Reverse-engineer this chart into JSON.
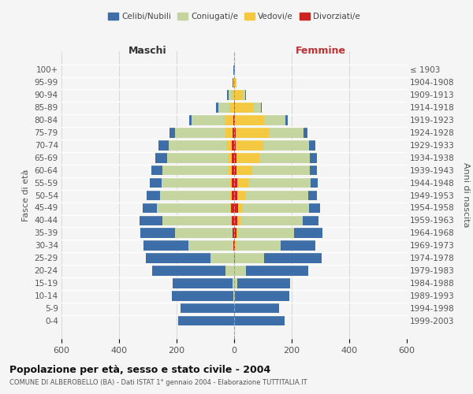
{
  "age_groups": [
    "0-4",
    "5-9",
    "10-14",
    "15-19",
    "20-24",
    "25-29",
    "30-34",
    "35-39",
    "40-44",
    "45-49",
    "50-54",
    "55-59",
    "60-64",
    "65-69",
    "70-74",
    "75-79",
    "80-84",
    "85-89",
    "90-94",
    "95-99",
    "100+"
  ],
  "birth_years": [
    "1999-2003",
    "1994-1998",
    "1989-1993",
    "1984-1988",
    "1979-1983",
    "1974-1978",
    "1969-1973",
    "1964-1968",
    "1959-1963",
    "1954-1958",
    "1949-1953",
    "1944-1948",
    "1939-1943",
    "1934-1938",
    "1929-1933",
    "1924-1928",
    "1919-1923",
    "1914-1918",
    "1909-1913",
    "1904-1908",
    "≤ 1903"
  ],
  "maschi": {
    "celibi": [
      195,
      185,
      215,
      210,
      255,
      225,
      155,
      120,
      80,
      50,
      45,
      40,
      40,
      40,
      35,
      20,
      10,
      6,
      4,
      2,
      2
    ],
    "coniugati": [
      0,
      0,
      2,
      5,
      30,
      80,
      155,
      200,
      240,
      255,
      245,
      240,
      230,
      210,
      200,
      175,
      115,
      40,
      15,
      2,
      0
    ],
    "vedovi": [
      0,
      0,
      0,
      0,
      0,
      0,
      1,
      1,
      2,
      4,
      5,
      5,
      10,
      15,
      20,
      25,
      30,
      15,
      5,
      2,
      0
    ],
    "divorziati": [
      0,
      0,
      0,
      0,
      1,
      1,
      3,
      5,
      8,
      10,
      8,
      8,
      8,
      8,
      8,
      5,
      2,
      1,
      0,
      0,
      0
    ]
  },
  "femmine": {
    "nubili": [
      175,
      155,
      190,
      185,
      215,
      200,
      120,
      100,
      55,
      40,
      30,
      25,
      25,
      25,
      22,
      15,
      8,
      5,
      3,
      2,
      2
    ],
    "coniugate": [
      0,
      0,
      2,
      10,
      40,
      100,
      155,
      195,
      215,
      230,
      220,
      215,
      200,
      175,
      160,
      120,
      75,
      25,
      8,
      2,
      0
    ],
    "vedove": [
      0,
      0,
      0,
      0,
      1,
      2,
      3,
      5,
      10,
      15,
      25,
      40,
      55,
      80,
      95,
      115,
      100,
      65,
      30,
      5,
      0
    ],
    "divorziate": [
      0,
      0,
      0,
      0,
      1,
      2,
      4,
      8,
      12,
      14,
      12,
      10,
      8,
      8,
      6,
      5,
      3,
      2,
      0,
      0,
      0
    ]
  },
  "color_celibi": "#3d6ea8",
  "color_coniugati": "#c5d5a0",
  "color_vedovi": "#f5c842",
  "color_divorziati": "#cc2222",
  "title": "Popolazione per età, sesso e stato civile - 2004",
  "subtitle": "COMUNE DI ALBEROBELLO (BA) - Dati ISTAT 1° gennaio 2004 - Elaborazione TUTTITALIA.IT",
  "xlabel_left": "Maschi",
  "xlabel_right": "Femmine",
  "ylabel_left": "Fasce di età",
  "ylabel_right": "Anni di nascita",
  "xlim": 600,
  "bg_color": "#f5f5f5",
  "grid_color": "#cccccc"
}
